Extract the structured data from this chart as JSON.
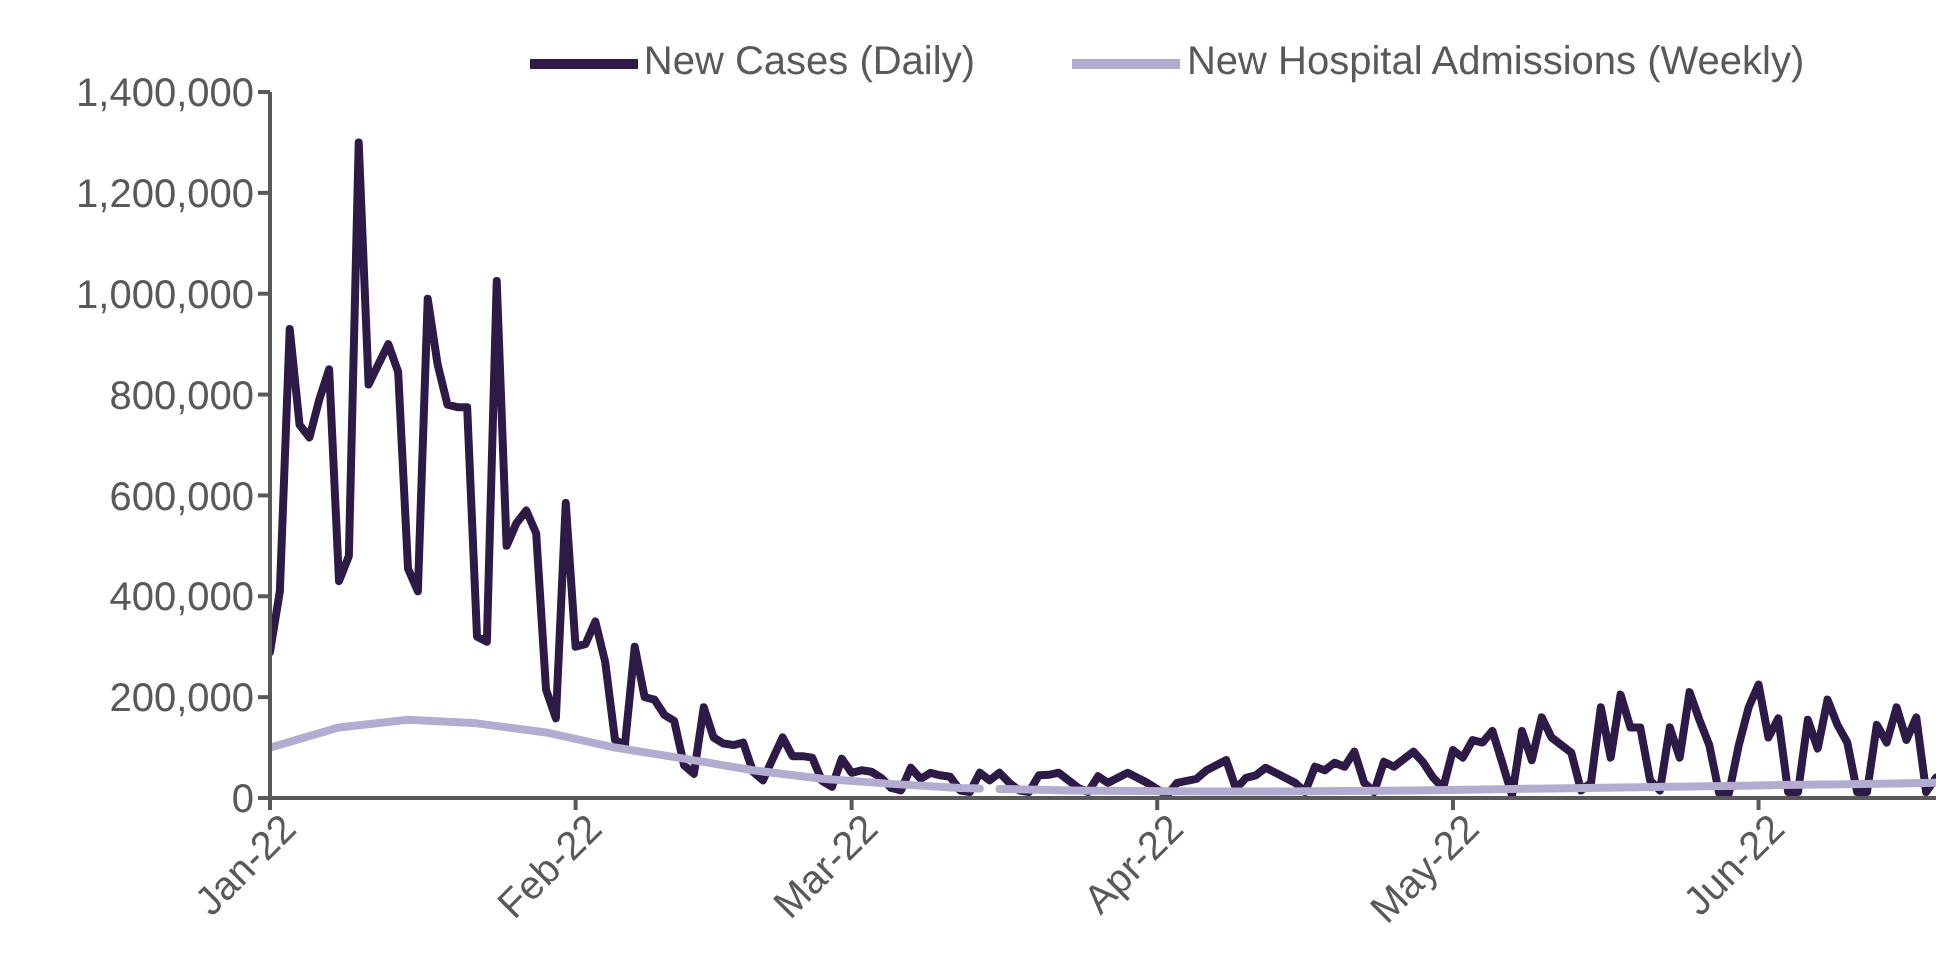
{
  "chart_data": {
    "type": "line",
    "legend": "top",
    "line_style": "solid",
    "grid": false,
    "xlim": [
      "2022-01-01",
      "2022-06-19"
    ],
    "xticks": [
      {
        "value": "2022-01-01",
        "label": "Jan-22"
      },
      {
        "value": "2022-02-01",
        "label": "Feb-22"
      },
      {
        "value": "2022-03-01",
        "label": "Mar-22"
      },
      {
        "value": "2022-04-01",
        "label": "Apr-22"
      },
      {
        "value": "2022-05-01",
        "label": "May-22"
      },
      {
        "value": "2022-06-01",
        "label": "Jun-22"
      }
    ],
    "ylim": [
      0,
      1400000
    ],
    "yticks": [
      {
        "value": 0,
        "label": "0"
      },
      {
        "value": 200000,
        "label": "200,000"
      },
      {
        "value": 400000,
        "label": "400,000"
      },
      {
        "value": 600000,
        "label": "600,000"
      },
      {
        "value": 800000,
        "label": "800,000"
      },
      {
        "value": 1000000,
        "label": "1,000,000"
      },
      {
        "value": 1200000,
        "label": "1,200,000"
      },
      {
        "value": 1400000,
        "label": "1,400,000"
      }
    ],
    "series": [
      {
        "name": "New Cases (Daily)",
        "color": "#2e1a47",
        "x": [
          "2022-01-01",
          "2022-01-02",
          "2022-01-03",
          "2022-01-04",
          "2022-01-05",
          "2022-01-06",
          "2022-01-07",
          "2022-01-08",
          "2022-01-09",
          "2022-01-10",
          "2022-01-11",
          "2022-01-12",
          "2022-01-13",
          "2022-01-14",
          "2022-01-15",
          "2022-01-16",
          "2022-01-17",
          "2022-01-18",
          "2022-01-19",
          "2022-01-20",
          "2022-01-21",
          "2022-01-22",
          "2022-01-23",
          "2022-01-24",
          "2022-01-25",
          "2022-01-26",
          "2022-01-27",
          "2022-01-28",
          "2022-01-29",
          "2022-01-30",
          "2022-01-31",
          "2022-02-01",
          "2022-02-02",
          "2022-02-03",
          "2022-02-04",
          "2022-02-05",
          "2022-02-06",
          "2022-02-07",
          "2022-02-08",
          "2022-02-09",
          "2022-02-10",
          "2022-02-11",
          "2022-02-12",
          "2022-02-13",
          "2022-02-14",
          "2022-02-15",
          "2022-02-16",
          "2022-02-17",
          "2022-02-18",
          "2022-02-19",
          "2022-02-20",
          "2022-02-21",
          "2022-02-22",
          "2022-02-23",
          "2022-02-24",
          "2022-02-25",
          "2022-02-26",
          "2022-02-27",
          "2022-02-28",
          "2022-03-01",
          "2022-03-02",
          "2022-03-03",
          "2022-03-04",
          "2022-03-05",
          "2022-03-06",
          "2022-03-07",
          "2022-03-08",
          "2022-03-09",
          "2022-03-10",
          "2022-03-11",
          "2022-03-12",
          "2022-03-13",
          "2022-03-14",
          "2022-03-15",
          "2022-03-16",
          "2022-03-17",
          "2022-03-18",
          "2022-03-19",
          "2022-03-20",
          "2022-03-21",
          "2022-03-22",
          "2022-03-24",
          "2022-03-25",
          "2022-03-26",
          "2022-03-27",
          "2022-03-29",
          "2022-03-31",
          "2022-04-02",
          "2022-04-03",
          "2022-04-05",
          "2022-04-06",
          "2022-04-08",
          "2022-04-09",
          "2022-04-10",
          "2022-04-11",
          "2022-04-12",
          "2022-04-13",
          "2022-04-15",
          "2022-04-16",
          "2022-04-17",
          "2022-04-18",
          "2022-04-19",
          "2022-04-20",
          "2022-04-21",
          "2022-04-22",
          "2022-04-23",
          "2022-04-24",
          "2022-04-25",
          "2022-04-27",
          "2022-04-28",
          "2022-04-29",
          "2022-04-30",
          "2022-05-01",
          "2022-05-02",
          "2022-05-03",
          "2022-05-04",
          "2022-05-05",
          "2022-05-06",
          "2022-05-07",
          "2022-05-08",
          "2022-05-09",
          "2022-05-10",
          "2022-05-11",
          "2022-05-13",
          "2022-05-14",
          "2022-05-15",
          "2022-05-16",
          "2022-05-17",
          "2022-05-18",
          "2022-05-19",
          "2022-05-20",
          "2022-05-21",
          "2022-05-22",
          "2022-05-23",
          "2022-05-24",
          "2022-05-25",
          "2022-05-26",
          "2022-05-27",
          "2022-05-28",
          "2022-05-29",
          "2022-05-30",
          "2022-05-31",
          "2022-06-01",
          "2022-06-02",
          "2022-06-03",
          "2022-06-04",
          "2022-06-05",
          "2022-06-06",
          "2022-06-07",
          "2022-06-08",
          "2022-06-09",
          "2022-06-10",
          "2022-06-11",
          "2022-06-12",
          "2022-06-13",
          "2022-06-14",
          "2022-06-15",
          "2022-06-16",
          "2022-06-17",
          "2022-06-18",
          "2022-06-19"
        ],
        "values": [
          290000,
          410000,
          930000,
          740000,
          715000,
          790000,
          850000,
          430000,
          480000,
          1300000,
          820000,
          860000,
          900000,
          845000,
          455000,
          410000,
          990000,
          860000,
          780000,
          775000,
          775000,
          320000,
          310000,
          1025000,
          500000,
          545000,
          570000,
          525000,
          215000,
          158000,
          585000,
          300000,
          305000,
          350000,
          270000,
          115000,
          105000,
          300000,
          200000,
          195000,
          165000,
          153000,
          65000,
          48000,
          180000,
          120000,
          108000,
          105000,
          110000,
          52000,
          35000,
          78000,
          120000,
          83000,
          83000,
          80000,
          34000,
          22000,
          78000,
          50000,
          55000,
          52000,
          40000,
          20000,
          15000,
          60000,
          38000,
          50000,
          45000,
          42000,
          15000,
          12000,
          50000,
          35000,
          50000,
          30000,
          15000,
          12000,
          45000,
          46000,
          50000,
          20000,
          12000,
          43000,
          30000,
          50000,
          30000,
          5000,
          30000,
          38000,
          55000,
          75000,
          18000,
          40000,
          45000,
          60000,
          50000,
          30000,
          12000,
          62000,
          55000,
          70000,
          62000,
          92000,
          30000,
          12000,
          72000,
          62000,
          92000,
          70000,
          40000,
          20000,
          95000,
          80000,
          115000,
          110000,
          133000,
          70000,
          5000,
          133000,
          75000,
          160000,
          120000,
          90000,
          15000,
          30000,
          180000,
          80000,
          205000,
          140000,
          140000,
          35000,
          15000,
          140000,
          80000,
          210000,
          155000,
          105000,
          10000,
          10000,
          105000,
          180000,
          225000,
          120000,
          158000,
          12000,
          12000,
          155000,
          98000,
          195000,
          145000,
          110000,
          12000,
          12000,
          145000,
          110000,
          180000,
          115000,
          160000,
          12000,
          40000
        ]
      },
      {
        "name": "New Hospital Admissions (Weekly)",
        "color": "#b3acd1",
        "x": [
          "2022-01-01",
          "2022-01-08",
          "2022-01-15",
          "2022-01-22",
          "2022-01-29",
          "2022-02-05",
          "2022-02-12",
          "2022-02-19",
          "2022-02-26",
          "2022-03-05",
          "2022-03-12",
          "2022-03-14",
          "2022-03-15",
          "2022-03-16",
          "2022-03-23",
          "2022-03-30",
          "2022-04-06",
          "2022-04-13",
          "2022-04-20",
          "2022-04-27",
          "2022-05-04",
          "2022-05-11",
          "2022-05-18",
          "2022-05-25",
          "2022-06-01",
          "2022-06-08",
          "2022-06-15",
          "2022-06-19"
        ],
        "values": [
          100000,
          140000,
          155000,
          148000,
          130000,
          100000,
          78000,
          55000,
          38000,
          28000,
          20000,
          19000,
          null,
          18000,
          15000,
          14000,
          13000,
          13000,
          14000,
          15000,
          17000,
          19000,
          21000,
          23000,
          25000,
          27000,
          29000,
          30000
        ]
      }
    ]
  }
}
